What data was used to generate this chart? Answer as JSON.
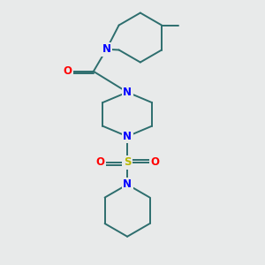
{
  "bg_color": "#e8eaea",
  "bond_color": "#2d6e6e",
  "N_color": "#0000ff",
  "O_color": "#ff0000",
  "S_color": "#b8b800",
  "line_width": 1.4,
  "font_size": 8.5,
  "figsize": [
    3.0,
    3.0
  ],
  "dpi": 100,
  "xlim": [
    0,
    10
  ],
  "ylim": [
    0,
    10
  ]
}
